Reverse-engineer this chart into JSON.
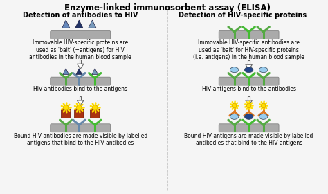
{
  "title": "Enzyme-linked immunosorbent assay (ELISA)",
  "left_title": "Detection of antibodies to HIV",
  "right_title": "Detection of HIV-specific proteins",
  "left_text1": "Immovable HIV-specific proteins are\nused as 'bait' (=antigens) for HIV\nantibodies in the human blood sample",
  "left_text2": "HIV antibodies bind to the antigens",
  "left_text3": "Bound HIV antibodies are made visible by labelled\nantigens that bind to the HIV antibodies",
  "right_text1": "Immovable HIV-specific antibodies are\nused as 'bait' for HIV-specific proteins\n(i.e. antigens) in the human blood sample",
  "right_text2": "HIV antigens bind to the antibodies",
  "right_text3": "Bound HIV antigens are made visible by labelled\nantibodies that bind to the HIV antigens",
  "bg_color": "#f5f5f5",
  "title_fontsize": 8.5,
  "subtitle_fontsize": 7.0,
  "text_fontsize": 5.5,
  "platform_color": "#aaaaaa",
  "tri_color1": "#6688bb",
  "tri_color2": "#223366",
  "tri_color3": "#7799bb",
  "green1": "#55aa44",
  "green2": "#44bb33",
  "blue_ab": "#6688aa",
  "dark_blue": "#224477",
  "blob_light": "#99ccee",
  "blob_dark": "#224488",
  "orange": "#cc6622",
  "red_box": "#aa3311",
  "yellow": "#ffdd00",
  "orange_ab": "#dd7722"
}
